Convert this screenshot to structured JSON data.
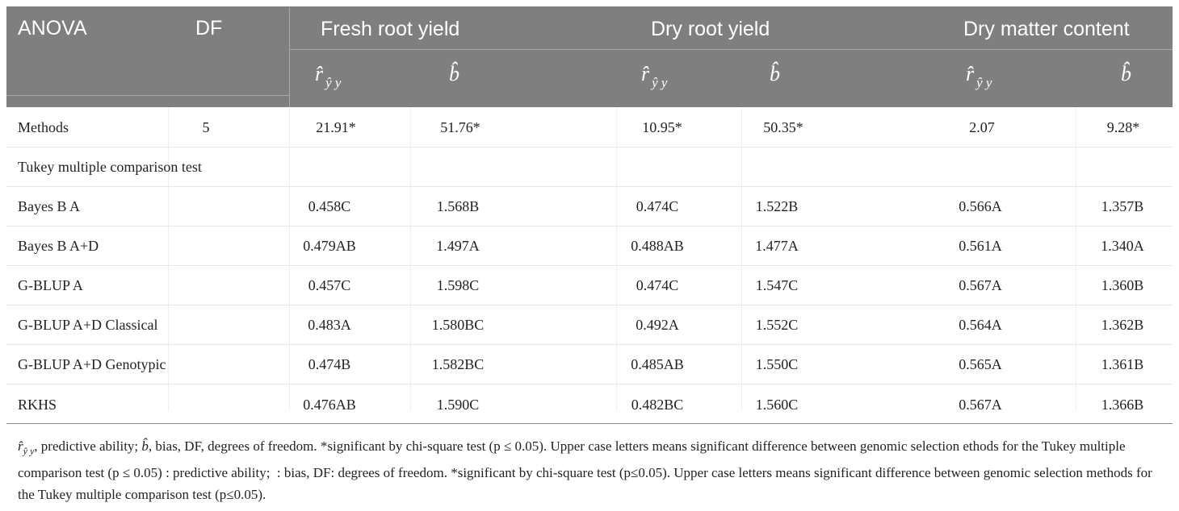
{
  "header": {
    "anova": "ANOVA",
    "df": "DF",
    "groups": [
      "Fresh root yield",
      "Dry root yield",
      "Dry matter content"
    ],
    "sym_r": "r̂",
    "sym_r_sub": "ŷ y",
    "sym_b": "b̂"
  },
  "methods_row": {
    "label": "Methods",
    "df": "5",
    "values": [
      "21.91*",
      "51.76*",
      "10.95*",
      "50.35*",
      "2.07",
      "9.28*"
    ]
  },
  "section_label": "Tukey multiple comparison test",
  "rows": [
    {
      "label": "Bayes B A",
      "values": [
        "0.458C",
        "1.568B",
        "0.474C",
        "1.522B",
        "0.566A",
        "1.357B"
      ]
    },
    {
      "label": "Bayes B A+D",
      "values": [
        "0.479AB",
        "1.497A",
        "0.488AB",
        "1.477A",
        "0.561A",
        "1.340A"
      ]
    },
    {
      "label": "G-BLUP A",
      "values": [
        "0.457C",
        "1.598C",
        "0.474C",
        "1.547C",
        "0.567A",
        "1.360B"
      ]
    },
    {
      "label": "G-BLUP A+D Classical",
      "values": [
        "0.483A",
        "1.580BC",
        "0.492A",
        "1.552C",
        "0.564A",
        "1.362B"
      ]
    },
    {
      "label": "G-BLUP A+D Genotypic",
      "values": [
        "0.474B",
        "1.582BC",
        "0.485AB",
        "1.550C",
        "0.565A",
        "1.361B"
      ]
    },
    {
      "label": "RKHS",
      "values": [
        "0.476AB",
        "1.590C",
        "0.482BC",
        "1.560C",
        "0.567A",
        "1.366B"
      ]
    }
  ],
  "footnote": {
    "sym_r": "r̂",
    "sym_r_sub": "ŷ y",
    "part1": ", predictive ability; ",
    "sym_b": "b̂",
    "part2": ", bias, DF, degrees of freedom. *significant by chi-square test (p ≤ 0.05). Upper case letters means significant difference between genomic selection ethods for the Tukey multiple comparison test (p ≤ 0.05) : predictive ability;  : bias, DF: degrees of freedom. *significant by chi-square test (p≤0.05). Upper case letters means significant difference between genomic selection methods for the Tukey multiple comparison test (p≤0.05)."
  }
}
